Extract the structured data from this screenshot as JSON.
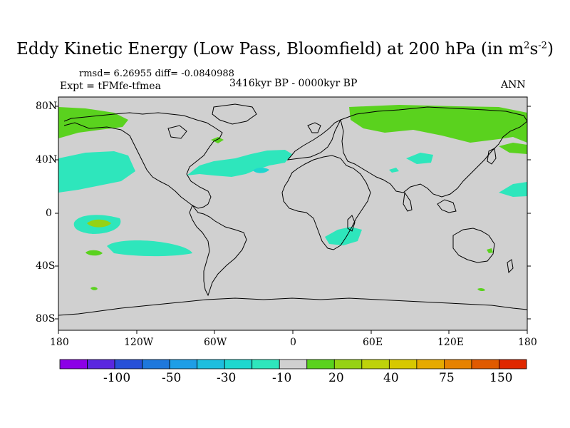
{
  "title": {
    "main": "Eddy Kinetic Energy (Low Pass, Bloomfield) at 200 hPa (in m",
    "sup1": "2",
    "mid": "s",
    "sup2": "-2",
    "close": ")"
  },
  "stats": "rmsd= 6.26955 diff= -0.0840988",
  "expt": "Expt = tFMfe-tfmea",
  "period": "3416kyr BP - 0000kyr BP",
  "season": "ANN",
  "lat_labels": [
    "80N",
    "40N",
    "0",
    "40S",
    "80S"
  ],
  "lon_labels": [
    "180",
    "120W",
    "60W",
    "0",
    "60E",
    "120E",
    "180"
  ],
  "colorbar": {
    "colors": [
      "#8c00e6",
      "#5a28e0",
      "#2850d8",
      "#1e78dc",
      "#1e9ee6",
      "#1ebede",
      "#1ed7cf",
      "#2ee6bc",
      "#d0d0d0",
      "#5ad21e",
      "#96d214",
      "#bed20a",
      "#d7c800",
      "#e6aa00",
      "#e68200",
      "#e05a00",
      "#e02800"
    ],
    "labels": [
      "-100",
      "-50",
      "-30",
      "-10",
      "20",
      "40",
      "75",
      "150"
    ]
  },
  "colors": {
    "land_ocean_bg": "#d0d0d0",
    "positive": "#5ad21e",
    "negative": "#2ee6bc",
    "coast": "#000000"
  }
}
